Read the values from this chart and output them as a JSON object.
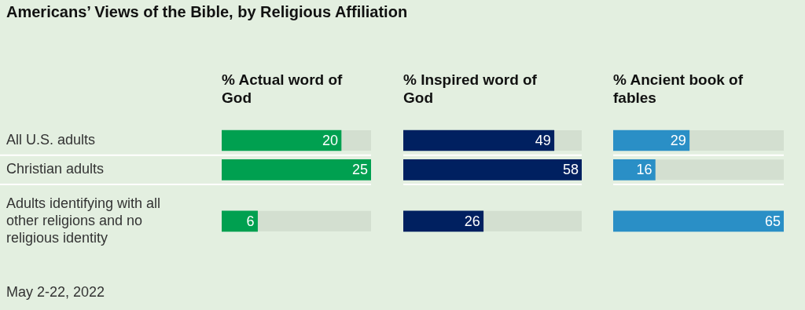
{
  "chart_data": [
    {
      "type": "other",
      "title": "Americans’ Views of the Bible, by Religious Affiliation",
      "annotations": [
        "May 2-22, 2022"
      ]
    },
    {
      "type": "bar",
      "orientation": "horizontal",
      "title": "% Actual word of God",
      "categories": [
        "All U.S. adults",
        "Christian adults",
        "Adults identifying with all other religions and no religious identity"
      ],
      "values": [
        20,
        25,
        6
      ],
      "color": "#00a050",
      "xlim": [
        0,
        25
      ],
      "data_labels": true,
      "tick_labels": "y"
    },
    {
      "type": "bar",
      "orientation": "horizontal",
      "title": "% Inspired word of God",
      "categories": [
        null,
        null,
        null
      ],
      "values": [
        49,
        58,
        26
      ],
      "color": "#002060",
      "xlim": [
        0,
        58
      ],
      "data_labels": true,
      "tick_labels": false
    },
    {
      "type": "bar",
      "orientation": "horizontal",
      "title": "% Ancient book of fables",
      "categories": [
        null,
        null,
        null
      ],
      "values": [
        29,
        16,
        65
      ],
      "color": "#2a8fc6",
      "xlim": [
        0,
        65
      ],
      "data_labels": true,
      "tick_labels": false
    }
  ]
}
